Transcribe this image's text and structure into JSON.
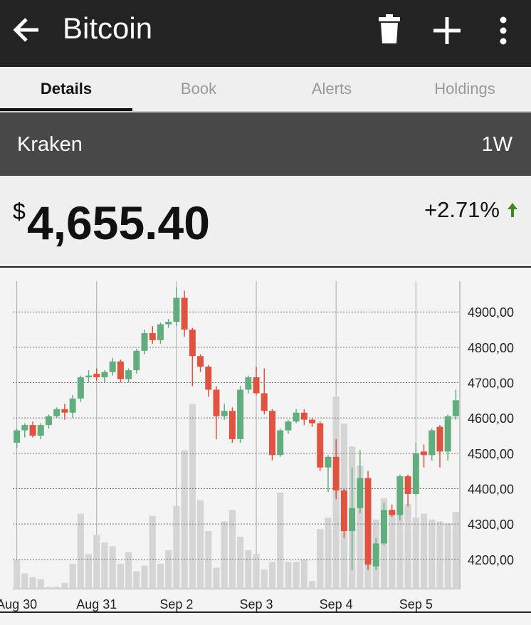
{
  "header": {
    "title": "Bitcoin"
  },
  "tabs": [
    "Details",
    "Book",
    "Alerts",
    "Holdings"
  ],
  "exchange": {
    "name": "Kraken",
    "range": "1W"
  },
  "price": {
    "currency": "$",
    "value": "4,655.40",
    "change": "+2.71%"
  },
  "chart_data": {
    "type": "candlestick",
    "categories": [
      "Aug 30",
      null,
      null,
      null,
      null,
      null,
      null,
      null,
      null,
      null,
      "Aug 31",
      null,
      null,
      null,
      null,
      null,
      null,
      null,
      null,
      null,
      "Sep 2",
      null,
      null,
      null,
      null,
      null,
      null,
      null,
      null,
      null,
      "Sep 3",
      null,
      null,
      null,
      null,
      null,
      null,
      null,
      null,
      null,
      "Sep 4",
      null,
      null,
      null,
      null,
      null,
      null,
      null,
      null,
      null,
      "Sep 5",
      null,
      null,
      null,
      null,
      null
    ],
    "open": [
      4530,
      4565,
      4580,
      4550,
      4580,
      4605,
      4625,
      4615,
      4655,
      4715,
      4725,
      4715,
      4730,
      4760,
      4710,
      4735,
      4790,
      4840,
      4820,
      4865,
      4872,
      4940,
      4850,
      4775,
      4745,
      4680,
      4605,
      4620,
      4540,
      4680,
      4715,
      4670,
      4620,
      4495,
      4565,
      4590,
      4615,
      4595,
      4585,
      4460,
      4490,
      4395,
      4280,
      4345,
      4430,
      4180,
      4245,
      4340,
      4325,
      4435,
      4385,
      4505,
      4495,
      4575,
      4505,
      4605
    ],
    "high": [
      4570,
      4585,
      4590,
      4585,
      4610,
      4630,
      4640,
      4665,
      4720,
      4735,
      4740,
      4735,
      4770,
      4765,
      4740,
      4795,
      4850,
      4860,
      4870,
      4880,
      4970,
      4960,
      4855,
      4780,
      4750,
      4690,
      4640,
      4630,
      4690,
      4720,
      4745,
      4740,
      4625,
      4570,
      4595,
      4625,
      4625,
      4600,
      4590,
      4495,
      4540,
      4400,
      4460,
      4510,
      4450,
      4260,
      4360,
      4355,
      4440,
      4440,
      4530,
      4525,
      4570,
      4580,
      4610,
      4680
    ],
    "low": [
      4515,
      4545,
      4545,
      4540,
      4570,
      4600,
      4595,
      4600,
      4645,
      4700,
      4705,
      4700,
      4720,
      4700,
      4700,
      4725,
      4780,
      4810,
      4810,
      4855,
      4860,
      4830,
      4690,
      4730,
      4660,
      4540,
      4595,
      4530,
      4530,
      4670,
      4665,
      4610,
      4480,
      4490,
      4555,
      4585,
      4580,
      4575,
      4450,
      4390,
      4370,
      4260,
      4170,
      4330,
      4170,
      4170,
      4240,
      4320,
      4310,
      4350,
      4380,
      4460,
      4480,
      4460,
      4480,
      4595
    ],
    "close": [
      4565,
      4580,
      4550,
      4580,
      4605,
      4625,
      4615,
      4655,
      4715,
      4720,
      4715,
      4730,
      4760,
      4710,
      4735,
      4790,
      4840,
      4820,
      4865,
      4872,
      4940,
      4850,
      4775,
      4745,
      4680,
      4605,
      4620,
      4540,
      4680,
      4715,
      4670,
      4620,
      4495,
      4565,
      4590,
      4615,
      4595,
      4585,
      4460,
      4490,
      4395,
      4280,
      4345,
      4430,
      4185,
      4245,
      4340,
      4325,
      4435,
      4385,
      4500,
      4495,
      4565,
      4505,
      4605,
      4650
    ],
    "volume": [
      15,
      8,
      6,
      5,
      1,
      1,
      3,
      13,
      39,
      18,
      28,
      24,
      22,
      13,
      19,
      9,
      12,
      38,
      13,
      20,
      43,
      72,
      96,
      46,
      30,
      11,
      35,
      41,
      27,
      20,
      18,
      10,
      14,
      50,
      14,
      14,
      15,
      4,
      31,
      37,
      100,
      86,
      74,
      64,
      32,
      36,
      47,
      40,
      43,
      44,
      37,
      39,
      36,
      35,
      34,
      40
    ],
    "up_color": "#62ad7e",
    "down_color": "#df5440",
    "volume_color": "#d5d5d5",
    "ylim": [
      4117,
      4987
    ],
    "yticks": [
      {
        "value": 4200,
        "label": "4200,00"
      },
      {
        "value": 4300,
        "label": "4300,00"
      },
      {
        "value": 4400,
        "label": "4400,00"
      },
      {
        "value": 4500,
        "label": "4500,00"
      },
      {
        "value": 4600,
        "label": "4600,00"
      },
      {
        "value": 4700,
        "label": "4700,00"
      },
      {
        "value": 4800,
        "label": "4800,00"
      },
      {
        "value": 4900,
        "label": "4900,00"
      }
    ],
    "grid": true
  }
}
